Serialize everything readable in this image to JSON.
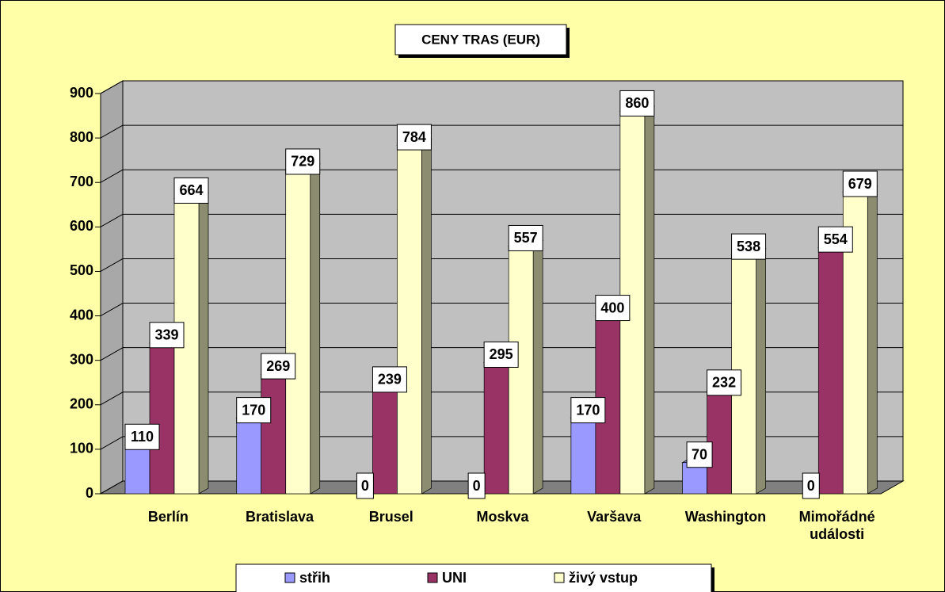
{
  "chart_data": {
    "type": "bar",
    "title": "CENY TRAS (EUR)",
    "categories": [
      "Berlín",
      "Bratislava",
      "Brusel",
      "Moskva",
      "Varšava",
      "Washington",
      "Mimořádné události"
    ],
    "series": [
      {
        "name": "střih",
        "color": "#9999ff",
        "values": [
          110,
          170,
          0,
          0,
          170,
          70,
          0
        ]
      },
      {
        "name": "UNI",
        "color": "#993366",
        "values": [
          339,
          269,
          239,
          295,
          400,
          232,
          554
        ]
      },
      {
        "name": "živý vstup",
        "color": "#ffffcc",
        "values": [
          664,
          729,
          784,
          557,
          860,
          538,
          679
        ]
      }
    ],
    "ylim": [
      0,
      900
    ],
    "yticks": [
      0,
      100,
      200,
      300,
      400,
      500,
      600,
      700,
      800,
      900
    ],
    "grid": true,
    "legend": "bottom"
  }
}
